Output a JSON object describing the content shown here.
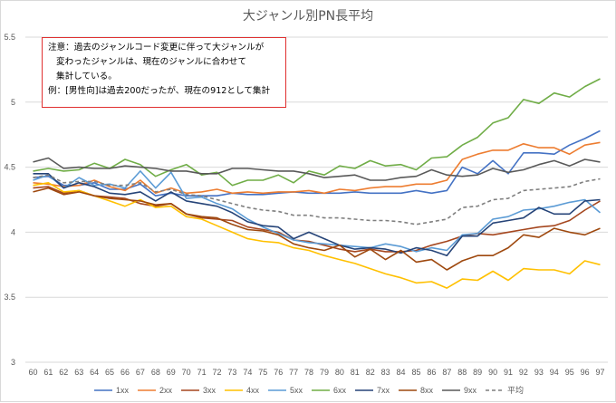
{
  "chart_data": {
    "type": "line",
    "title": "大ジャンル別PN長平均",
    "xlabel": "",
    "ylabel": "",
    "ylim": [
      3,
      5.5
    ],
    "yticks": [
      "3",
      "3.5",
      "4",
      "4.5",
      "5",
      "5.5"
    ],
    "grid": true,
    "legend_position": "bottom",
    "categories": [
      "60",
      "61",
      "62",
      "63",
      "64",
      "65",
      "66",
      "67",
      "68",
      "69",
      "70",
      "71",
      "72",
      "73",
      "74",
      "75",
      "76",
      "77",
      "78",
      "79",
      "80",
      "81",
      "82",
      "83",
      "84",
      "85",
      "86",
      "87",
      "88",
      "89",
      "90",
      "91",
      "92",
      "93",
      "94",
      "95",
      "96",
      "97"
    ],
    "series": [
      {
        "name": "1xx",
        "color": "#4472c4",
        "dash": false,
        "values": [
          4.42,
          4.43,
          4.36,
          4.36,
          4.38,
          4.33,
          4.33,
          4.37,
          4.28,
          4.3,
          4.28,
          4.28,
          4.28,
          4.3,
          4.29,
          4.29,
          4.3,
          4.31,
          4.3,
          4.3,
          4.3,
          4.31,
          4.3,
          4.3,
          4.3,
          4.32,
          4.3,
          4.32,
          4.5,
          4.45,
          4.55,
          4.45,
          4.61,
          4.61,
          4.6,
          4.67,
          4.72,
          4.78
        ]
      },
      {
        "name": "2xx",
        "color": "#ed7d31",
        "dash": false,
        "values": [
          4.38,
          4.37,
          4.35,
          4.36,
          4.4,
          4.35,
          4.32,
          4.4,
          4.3,
          4.34,
          4.3,
          4.31,
          4.33,
          4.3,
          4.31,
          4.3,
          4.31,
          4.31,
          4.32,
          4.3,
          4.33,
          4.32,
          4.34,
          4.35,
          4.35,
          4.37,
          4.37,
          4.4,
          4.56,
          4.6,
          4.63,
          4.63,
          4.68,
          4.65,
          4.65,
          4.6,
          4.67,
          4.69
        ]
      },
      {
        "name": "3xx",
        "color": "#a5471f",
        "dash": false,
        "values": [
          4.34,
          4.35,
          4.3,
          4.32,
          4.28,
          4.27,
          4.26,
          4.22,
          4.2,
          4.22,
          4.14,
          4.11,
          4.1,
          4.09,
          4.04,
          4.02,
          4.0,
          3.94,
          3.93,
          3.9,
          3.87,
          3.85,
          3.87,
          3.85,
          3.85,
          3.86,
          3.9,
          3.93,
          3.97,
          3.99,
          3.98,
          4.0,
          4.02,
          4.04,
          4.05,
          4.09,
          4.17,
          4.24
        ]
      },
      {
        "name": "4xx",
        "color": "#ffc000",
        "dash": false,
        "values": [
          4.36,
          4.38,
          4.31,
          4.32,
          4.28,
          4.24,
          4.2,
          4.25,
          4.19,
          4.2,
          4.12,
          4.1,
          4.05,
          4.0,
          3.95,
          3.93,
          3.92,
          3.88,
          3.86,
          3.82,
          3.79,
          3.76,
          3.72,
          3.68,
          3.65,
          3.61,
          3.62,
          3.57,
          3.64,
          3.63,
          3.7,
          3.63,
          3.72,
          3.71,
          3.71,
          3.68,
          3.78,
          3.75
        ]
      },
      {
        "name": "5xx",
        "color": "#5b9bd5",
        "dash": false,
        "values": [
          4.4,
          4.44,
          4.34,
          4.42,
          4.36,
          4.37,
          4.34,
          4.47,
          4.34,
          4.46,
          4.26,
          4.27,
          4.22,
          4.18,
          4.1,
          4.04,
          3.99,
          3.94,
          3.92,
          3.91,
          3.9,
          3.89,
          3.88,
          3.91,
          3.89,
          3.85,
          3.88,
          3.86,
          3.98,
          3.99,
          4.1,
          4.12,
          4.17,
          4.18,
          4.2,
          4.23,
          4.25,
          4.15
        ]
      },
      {
        "name": "6xx",
        "color": "#70ad47",
        "dash": false,
        "values": [
          4.47,
          4.49,
          4.47,
          4.48,
          4.53,
          4.49,
          4.56,
          4.52,
          4.43,
          4.48,
          4.52,
          4.44,
          4.46,
          4.36,
          4.4,
          4.4,
          4.44,
          4.38,
          4.47,
          4.44,
          4.51,
          4.49,
          4.55,
          4.51,
          4.52,
          4.48,
          4.57,
          4.58,
          4.67,
          4.73,
          4.84,
          4.88,
          5.02,
          4.99,
          5.07,
          5.04,
          5.12,
          5.18
        ]
      },
      {
        "name": "7xx",
        "color": "#264478",
        "dash": false,
        "values": [
          4.45,
          4.45,
          4.34,
          4.38,
          4.35,
          4.3,
          4.29,
          4.31,
          4.24,
          4.31,
          4.24,
          4.22,
          4.2,
          4.15,
          4.08,
          4.05,
          4.04,
          3.95,
          4.0,
          3.95,
          3.9,
          3.87,
          3.88,
          3.87,
          3.84,
          3.88,
          3.86,
          3.82,
          3.97,
          3.97,
          4.07,
          4.09,
          4.11,
          4.19,
          4.14,
          4.14,
          4.24,
          4.25
        ]
      },
      {
        "name": "8xx",
        "color": "#9e480e",
        "dash": false,
        "values": [
          4.31,
          4.34,
          4.29,
          4.31,
          4.28,
          4.26,
          4.25,
          4.24,
          4.21,
          4.22,
          4.14,
          4.12,
          4.11,
          4.06,
          4.02,
          4.01,
          3.98,
          3.91,
          3.88,
          3.86,
          3.9,
          3.81,
          3.87,
          3.79,
          3.86,
          3.77,
          3.79,
          3.71,
          3.78,
          3.82,
          3.82,
          3.88,
          3.98,
          3.96,
          4.03,
          4.0,
          3.98,
          4.03
        ]
      },
      {
        "name": "9xx",
        "color": "#595959",
        "dash": false,
        "values": [
          4.54,
          4.57,
          4.49,
          4.5,
          4.49,
          4.49,
          4.51,
          4.5,
          4.49,
          4.47,
          4.47,
          4.45,
          4.45,
          4.49,
          4.49,
          4.48,
          4.47,
          4.47,
          4.45,
          4.42,
          4.43,
          4.44,
          4.4,
          4.4,
          4.42,
          4.43,
          4.48,
          4.44,
          4.43,
          4.44,
          4.49,
          4.46,
          4.48,
          4.52,
          4.55,
          4.51,
          4.56,
          4.54
        ]
      },
      {
        "name": "平均",
        "color": "#7f7f7f",
        "dash": true,
        "values": [
          4.42,
          4.44,
          4.38,
          4.39,
          4.39,
          4.36,
          4.36,
          4.38,
          4.31,
          4.33,
          4.29,
          4.28,
          4.25,
          4.22,
          4.19,
          4.17,
          4.16,
          4.13,
          4.13,
          4.11,
          4.11,
          4.1,
          4.09,
          4.09,
          4.08,
          4.06,
          4.08,
          4.1,
          4.19,
          4.2,
          4.25,
          4.26,
          4.32,
          4.33,
          4.34,
          4.35,
          4.39,
          4.41
        ]
      }
    ]
  },
  "note": {
    "line1": "注意：過去のジャンルコード変更に伴って大ジャンルが",
    "line2": "変わったジャンルは、現在のジャンルに合わせて",
    "line3": "集計している。",
    "line4": "例：[男性向]は過去200だったが、現在の912として集計"
  }
}
